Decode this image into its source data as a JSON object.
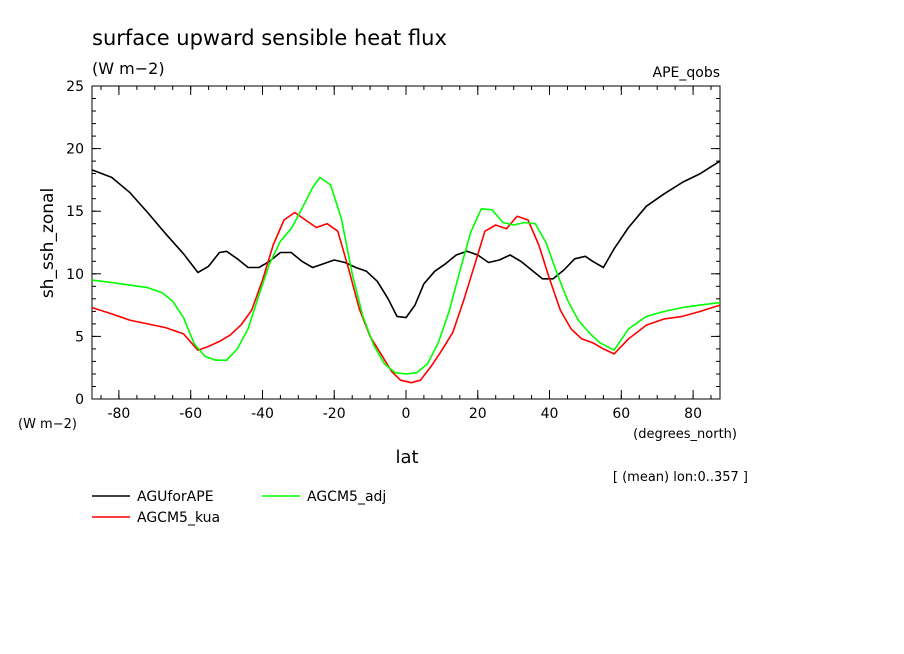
{
  "chart_data": {
    "type": "line",
    "title": "surface upward sensible heat flux",
    "units": "(W m−2)",
    "dataset": "APE_qobs",
    "ylabel": "sh_ssh_zonal",
    "ylabel_units": "(W m−2)",
    "xlabel": "lat",
    "xlabel_units": "(degrees_north)",
    "note": "[ (mean) lon:0..357 ]",
    "xlim": [
      -87.5,
      87.5
    ],
    "ylim": [
      0,
      25
    ],
    "x_ticks": [
      -80,
      -60,
      -40,
      -20,
      0,
      20,
      40,
      60,
      80
    ],
    "y_ticks": [
      0,
      5,
      10,
      15,
      20,
      25
    ],
    "grid": false,
    "legend_position": "bottom-left",
    "series": [
      {
        "name": "AGUforAPE",
        "color": "#000000",
        "x": [
          -87.5,
          -82,
          -77,
          -72,
          -67,
          -62,
          -58,
          -55,
          -52,
          -50,
          -47,
          -44,
          -41,
          -38,
          -35,
          -32,
          -29,
          -26,
          -23,
          -20,
          -17,
          -14,
          -11,
          -8,
          -5,
          -2.5,
          0,
          2.5,
          5,
          8,
          11,
          14,
          17,
          20,
          23,
          26,
          29,
          32,
          35,
          38,
          41,
          44,
          47,
          50,
          52,
          55,
          58,
          62,
          67,
          72,
          77,
          82,
          87.5
        ],
        "y": [
          18.3,
          17.7,
          16.5,
          14.9,
          13.2,
          11.6,
          10.1,
          10.6,
          11.7,
          11.8,
          11.2,
          10.5,
          10.5,
          11.0,
          11.7,
          11.7,
          11.0,
          10.5,
          10.8,
          11.1,
          10.9,
          10.5,
          10.2,
          9.4,
          8.0,
          6.6,
          6.5,
          7.5,
          9.2,
          10.2,
          10.8,
          11.5,
          11.8,
          11.5,
          10.9,
          11.1,
          11.5,
          11.0,
          10.3,
          9.6,
          9.6,
          10.3,
          11.2,
          11.4,
          11.0,
          10.5,
          12.0,
          13.7,
          15.4,
          16.4,
          17.3,
          18.0,
          19.0
        ]
      },
      {
        "name": "AGCM5_kua",
        "color": "#ff0000",
        "x": [
          -87.5,
          -82,
          -77,
          -72,
          -67,
          -62,
          -58,
          -55,
          -52,
          -49,
          -46,
          -43,
          -40,
          -37,
          -34,
          -31,
          -28,
          -25,
          -22,
          -19,
          -16,
          -13,
          -10,
          -7,
          -4,
          -1.5,
          1.5,
          4,
          7,
          10,
          13,
          16,
          19,
          22,
          25,
          28,
          31,
          34,
          37,
          40,
          43,
          46,
          49,
          52,
          55,
          58,
          62,
          67,
          72,
          77,
          82,
          87.5
        ],
        "y": [
          7.3,
          6.8,
          6.3,
          6.0,
          5.7,
          5.2,
          3.9,
          4.2,
          4.6,
          5.1,
          5.9,
          7.1,
          9.5,
          12.3,
          14.3,
          14.9,
          14.3,
          13.7,
          14.0,
          13.4,
          10.4,
          7.2,
          5.0,
          3.6,
          2.2,
          1.5,
          1.3,
          1.5,
          2.6,
          3.9,
          5.3,
          7.8,
          10.6,
          13.4,
          13.9,
          13.6,
          14.6,
          14.3,
          12.3,
          9.6,
          7.1,
          5.6,
          4.8,
          4.5,
          4.0,
          3.6,
          4.8,
          5.9,
          6.4,
          6.6,
          7.0,
          7.5
        ]
      },
      {
        "name": "AGCM5_adj",
        "color": "#00ff00",
        "x": [
          -87.5,
          -82,
          -77,
          -72,
          -68,
          -65,
          -62,
          -59,
          -56,
          -53,
          -50,
          -47,
          -44,
          -41,
          -38,
          -35,
          -32,
          -29,
          -26,
          -24,
          -21,
          -18,
          -15,
          -12,
          -9,
          -6,
          -3,
          0,
          3,
          6,
          9,
          12,
          15,
          18,
          21,
          24,
          27,
          30,
          33,
          36,
          39,
          42,
          45,
          48,
          51,
          54,
          58,
          62,
          67,
          72,
          77,
          82,
          87.5
        ],
        "y": [
          9.5,
          9.3,
          9.1,
          8.9,
          8.5,
          7.8,
          6.5,
          4.4,
          3.4,
          3.1,
          3.1,
          4.0,
          5.6,
          8.3,
          10.8,
          12.6,
          13.6,
          15.2,
          16.9,
          17.7,
          17.1,
          14.4,
          10.0,
          6.6,
          4.3,
          2.8,
          2.1,
          2.0,
          2.1,
          2.8,
          4.5,
          7.0,
          10.2,
          13.3,
          15.2,
          15.1,
          14.1,
          13.9,
          14.1,
          14.0,
          12.5,
          10.1,
          7.9,
          6.3,
          5.3,
          4.5,
          3.9,
          5.6,
          6.6,
          7.0,
          7.3,
          7.5,
          7.7
        ]
      }
    ]
  }
}
